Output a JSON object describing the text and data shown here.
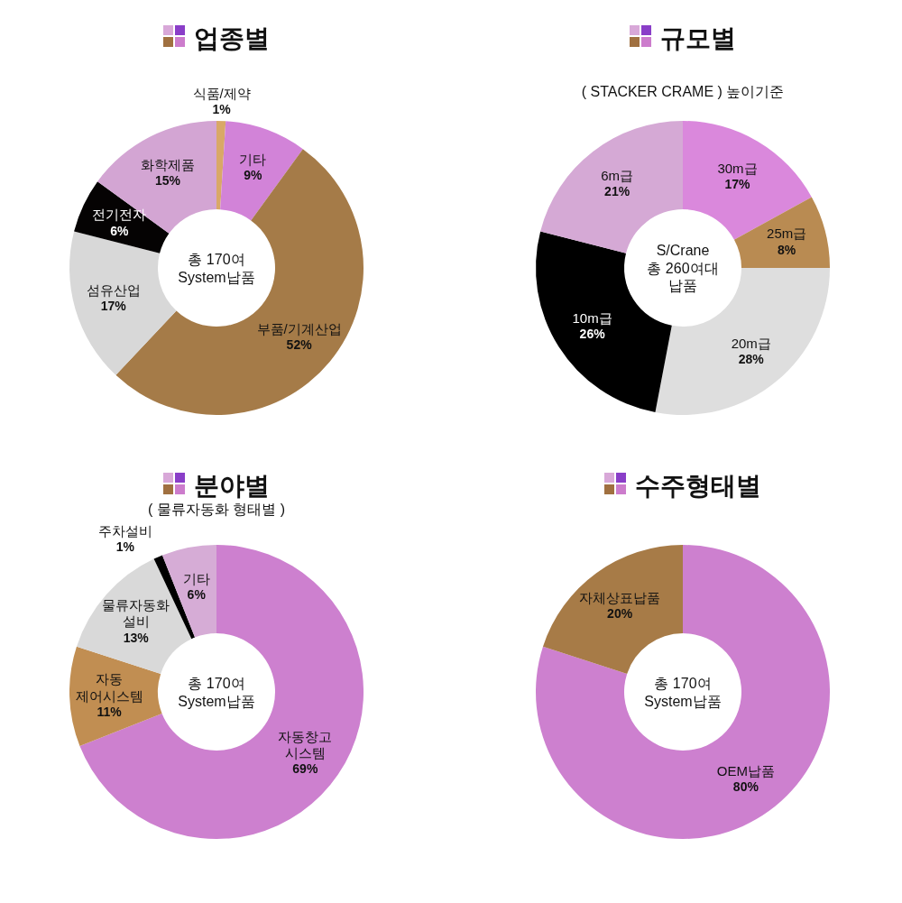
{
  "chart_data": [
    {
      "type": "donut",
      "title": "업종별",
      "categories": [
        "식품/제약",
        "기타",
        "부품/기계산업",
        "섬유산업",
        "전기전자",
        "화학제품"
      ],
      "values": [
        1,
        9,
        52,
        17,
        6,
        15
      ],
      "colors": [
        "#d9a867",
        "#d283d8",
        "#a57b48",
        "#d8d8d8",
        "#050303",
        "#d3a5d3"
      ],
      "value_labels": [
        "1%",
        "9%",
        "52%",
        "17%",
        "6%",
        "15%"
      ],
      "annotations": [
        "총 170여\nSystem납품"
      ]
    },
    {
      "type": "donut",
      "title": "규모별",
      "subtitle": "( STACKER CRAME ) 높이기준",
      "categories": [
        "30m급",
        "25m급",
        "20m급",
        "10m급",
        "6m급"
      ],
      "values": [
        17,
        8,
        28,
        26,
        21
      ],
      "colors": [
        "#da88dc",
        "#b98b52",
        "#dedede",
        "#000000",
        "#d5a9d5"
      ],
      "value_labels": [
        "17%",
        "8%",
        "28%",
        "26%",
        "21%"
      ],
      "annotations": [
        "S/Crane\n총 260여대\n납품"
      ]
    },
    {
      "type": "donut",
      "title": "분야별",
      "subtitle": "( 물류자동화 형태별 )",
      "categories": [
        "자동창고\n시스템",
        "자동\n제어시스템",
        "물류자동화\n설비",
        "주차설비",
        "기타"
      ],
      "values": [
        69,
        11,
        13,
        1,
        6
      ],
      "colors": [
        "#cd80cf",
        "#c18e52",
        "#d9d9d9",
        "#000000",
        "#d6acd6"
      ],
      "value_labels": [
        "69%",
        "11%",
        "13%",
        "1%",
        "6%"
      ],
      "annotations": [
        "총 170여\nSystem납품"
      ]
    },
    {
      "type": "donut",
      "title": "수주형태별",
      "categories": [
        "OEM납품",
        "자체상표납품"
      ],
      "values": [
        80,
        20
      ],
      "colors": [
        "#cd80cf",
        "#a77b47"
      ],
      "value_labels": [
        "80%",
        "20%"
      ],
      "annotations": [
        "총 170여\nSystem납품"
      ]
    }
  ]
}
